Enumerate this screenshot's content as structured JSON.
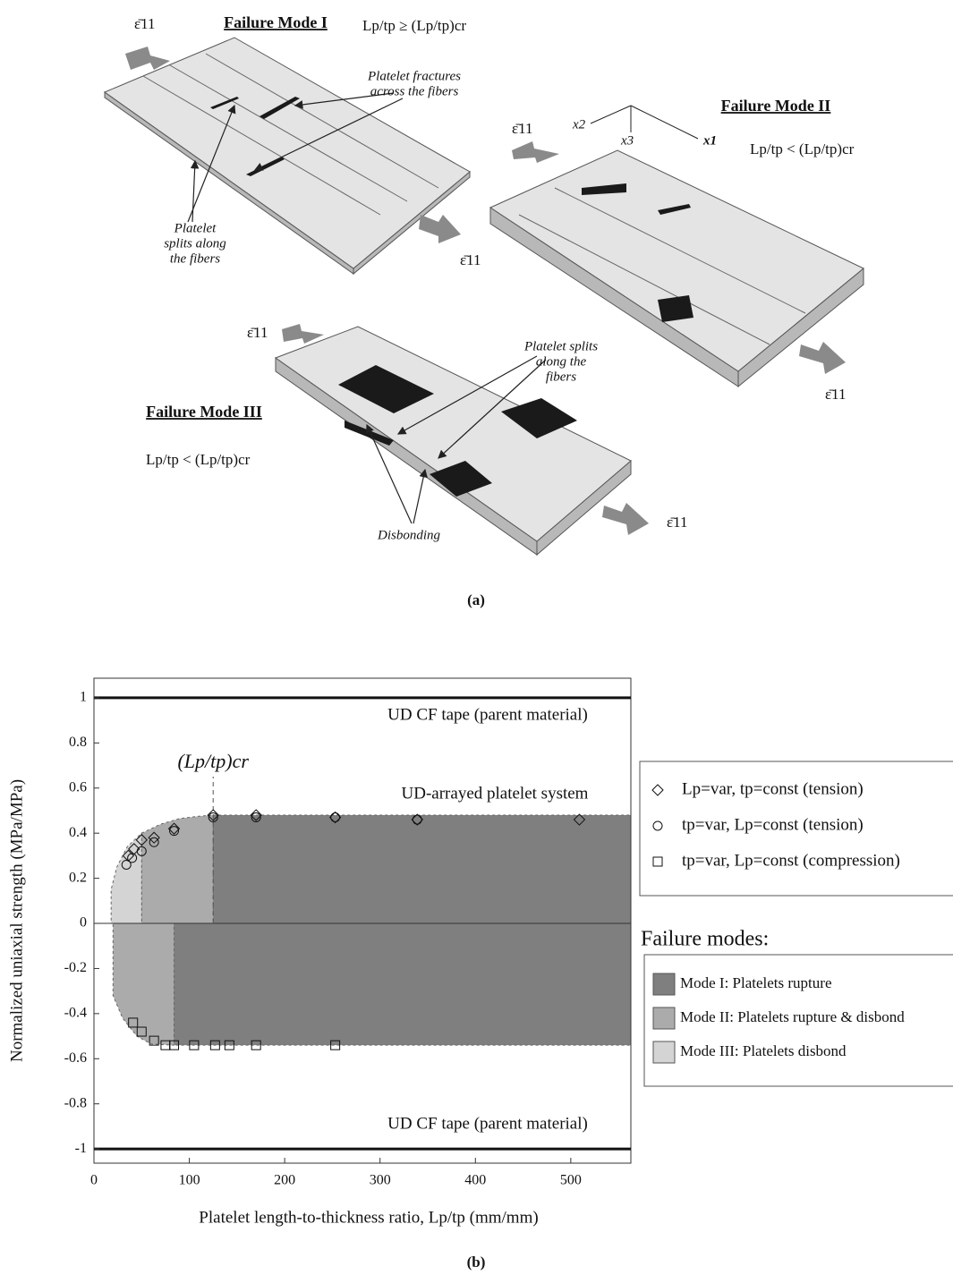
{
  "caption_a": "(a)",
  "caption_b": "(b)",
  "figure_a": {
    "modes": [
      {
        "title": "Failure Mode I",
        "criterion": "Lp/tp ≥ (Lp/tp)cr"
      },
      {
        "title": "Failure Mode II",
        "criterion": "Lp/tp < (Lp/tp)cr"
      },
      {
        "title": "Failure Mode III",
        "criterion": "Lp/tp < (Lp/tp)cr"
      }
    ],
    "annotations": [
      {
        "lines": [
          "Platelet fractures",
          "across the fibers"
        ]
      },
      {
        "lines": [
          "Platelet",
          "splits along",
          "the fibers"
        ]
      },
      {
        "lines": [
          "Platelet splits",
          "along the",
          "fibers"
        ]
      },
      {
        "lines": [
          "Disbonding"
        ]
      }
    ],
    "axes": [
      "x2",
      "x3",
      "x1"
    ],
    "strain_label": "ε̄11"
  },
  "chart_data": {
    "type": "scatter",
    "x_label": "Platelet length-to-thickness ratio, Lp/tp (mm/mm)",
    "y_label": "Normalized uniaxial strength (MPa/MPa)",
    "xlim": [
      0,
      563
    ],
    "ylim": [
      -1.063,
      1.087
    ],
    "xticks": [
      0,
      100,
      200,
      300,
      400,
      500
    ],
    "yticks": [
      -1,
      -0.8,
      -0.6,
      -0.4,
      -0.2,
      0,
      0.2,
      0.4,
      0.6,
      0.8,
      1
    ],
    "reference_lines": [
      1,
      -1
    ],
    "annotations": [
      "UD CF tape (parent material)",
      "UD-arrayed platelet system",
      "UD CF tape (parent material)"
    ],
    "critical": {
      "label": "(Lp/tp)cr",
      "x": 125
    },
    "series": [
      {
        "name": "Lp=var, tp=const (tension)",
        "marker": "diamond",
        "color": "#111",
        "x": [
          36,
          42,
          50,
          63,
          84,
          125,
          170,
          253,
          339,
          509
        ],
        "values": [
          0.3,
          0.33,
          0.37,
          0.38,
          0.42,
          0.48,
          0.48,
          0.47,
          0.46,
          0.46
        ]
      },
      {
        "name": "tp=var, Lp=const (tension)",
        "marker": "circle",
        "color": "#111",
        "x": [
          34,
          40,
          50,
          63,
          84,
          125,
          170,
          253,
          339
        ],
        "values": [
          0.26,
          0.29,
          0.32,
          0.36,
          0.41,
          0.47,
          0.47,
          0.47,
          0.46
        ]
      },
      {
        "name": "tp=var, Lp=const (compression)",
        "marker": "square",
        "color": "#111",
        "x": [
          41,
          50,
          63,
          75,
          84,
          105,
          127,
          142,
          170,
          253
        ],
        "values": [
          -0.44,
          -0.48,
          -0.52,
          -0.54,
          -0.54,
          -0.54,
          -0.54,
          -0.54,
          -0.54,
          -0.54
        ]
      }
    ],
    "regions_title": "Failure modes:",
    "regions": [
      {
        "name": "Mode I: Platelets rupture",
        "color": "#7f7f7f",
        "polygons": [
          {
            "x": [
              125,
              563,
              563,
              125
            ],
            "y": [
              0.48,
              0.48,
              0,
              0
            ]
          },
          {
            "x": [
              84,
              563,
              563,
              84
            ],
            "y": [
              0,
              0,
              -0.54,
              -0.54
            ]
          }
        ]
      },
      {
        "name": "Mode II: Platelets rupture & disbond",
        "color": "#ababab",
        "polygons": [
          {
            "x": [
              50,
              70,
              90,
              110,
              125,
              125,
              50
            ],
            "y": [
              0.4,
              0.44,
              0.465,
              0.475,
              0.48,
              0,
              0
            ]
          },
          {
            "x": [
              20,
              84,
              84,
              60,
              45,
              30,
              20
            ],
            "y": [
              0,
              0,
              -0.54,
              -0.535,
              -0.5,
              -0.42,
              -0.32
            ]
          }
        ]
      },
      {
        "name": "Mode III: Platelets disbond",
        "color": "#d4d4d4",
        "polygons": [
          {
            "x": [
              18,
              50,
              50,
              35,
              24,
              18
            ],
            "y": [
              0,
              0,
              0.4,
              0.34,
              0.25,
              0.15
            ]
          }
        ]
      }
    ]
  }
}
